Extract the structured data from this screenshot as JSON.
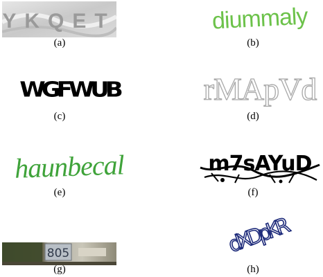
{
  "figure": {
    "panels": [
      {
        "id": "a",
        "caption": "(a)",
        "captcha_text": "YKQET",
        "text_color": "#9a9a9a",
        "background": "#d6d6d6"
      },
      {
        "id": "b",
        "caption": "(b)",
        "captcha_text": "diummaly",
        "text_color": "#6cc24a"
      },
      {
        "id": "c",
        "caption": "(c)",
        "captcha_text": "WGFWUB",
        "text_color": "#000000"
      },
      {
        "id": "d",
        "caption": "(d)",
        "captcha_text": "rMApVd",
        "text_color": "#b8b8b8"
      },
      {
        "id": "e",
        "caption": "(e)",
        "captcha_text": "haunbecal",
        "text_color": "#3fa33a"
      },
      {
        "id": "f",
        "caption": "(f)",
        "captcha_text": "m7sAYuD",
        "text_color": "#000000"
      },
      {
        "id": "g",
        "caption": "(g)",
        "sign_text": "805",
        "background": "#6b6b52"
      },
      {
        "id": "h",
        "caption": "(h)",
        "captcha_text": "dXDpKR",
        "text_color": "#1d2a7a"
      }
    ]
  }
}
